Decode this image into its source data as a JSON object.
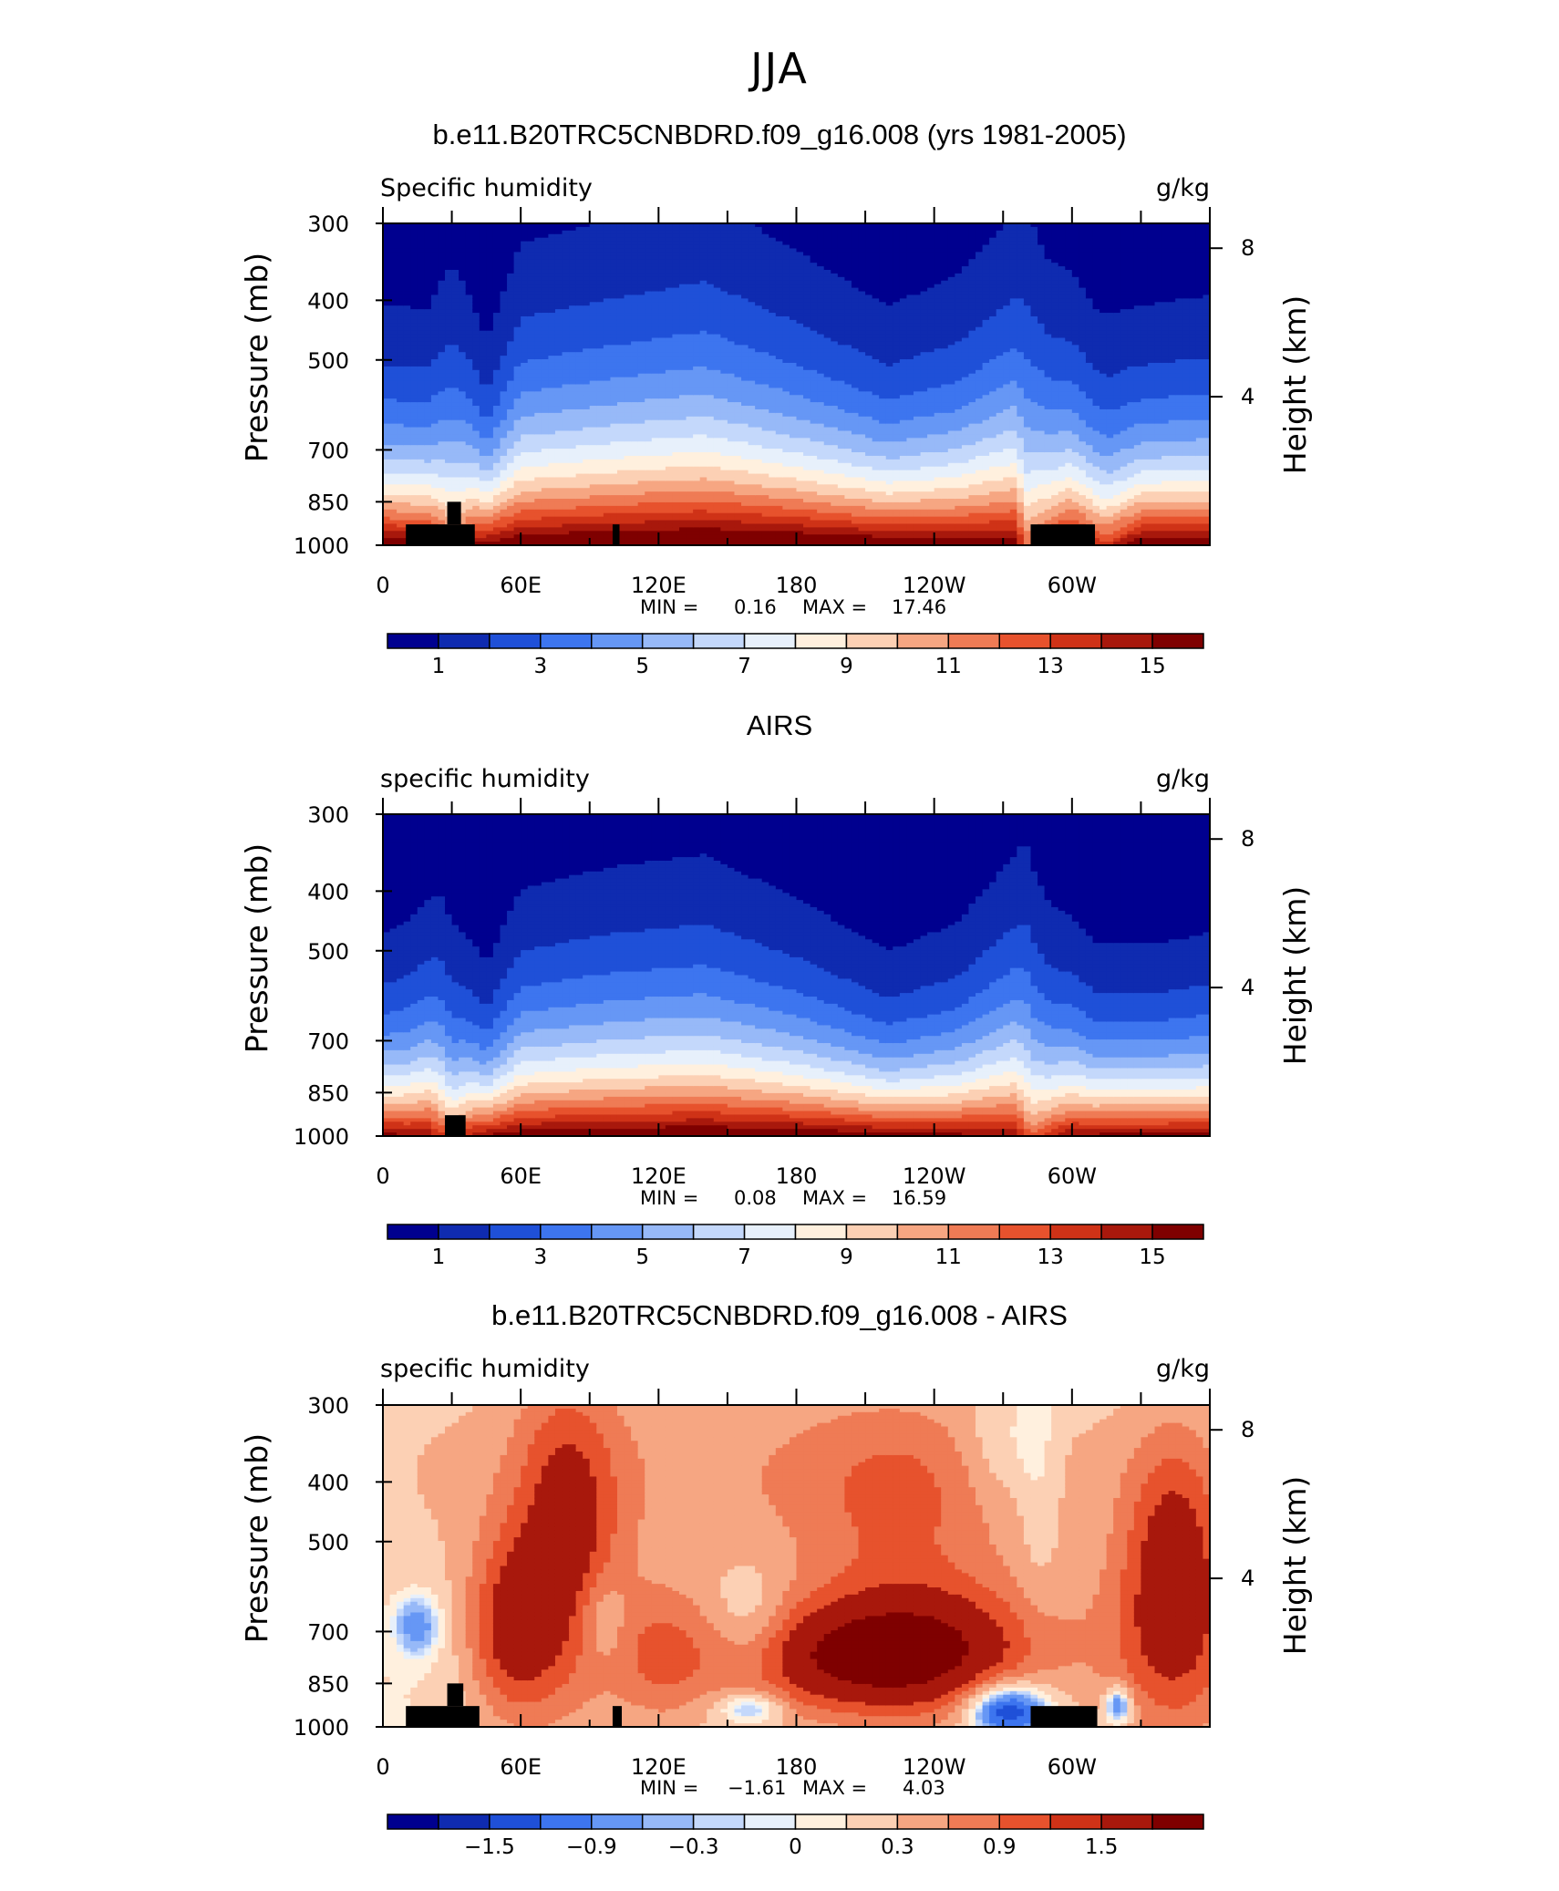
{
  "page_title": "JJA",
  "panels": [
    {
      "title": "b.e11.B20TRC5CNBDRD.f09_g16.008 (yrs 1981-2005)",
      "left_label": "Specific humidity",
      "right_label": "g/kg",
      "min_label": "MIN =",
      "min_value": "0.16",
      "max_label": "MAX =",
      "max_value": "17.46",
      "colorbar_labels": [
        "1",
        "3",
        "5",
        "7",
        "9",
        "11",
        "13",
        "15"
      ]
    },
    {
      "title": "AIRS",
      "left_label": "specific humidity",
      "right_label": "g/kg",
      "min_label": "MIN =",
      "min_value": "0.08",
      "max_label": "MAX =",
      "max_value": "16.59",
      "colorbar_labels": [
        "1",
        "3",
        "5",
        "7",
        "9",
        "11",
        "13",
        "15"
      ]
    },
    {
      "title": "b.e11.B20TRC5CNBDRD.f09_g16.008 - AIRS",
      "left_label": "specific humidity",
      "right_label": "g/kg",
      "min_label": "MIN =",
      "min_value": "−1.61",
      "max_label": "MAX =",
      "max_value": "4.03",
      "colorbar_labels": [
        "−1.5",
        "−0.9",
        "−0.3",
        "0",
        "0.3",
        "0.9",
        "1.5"
      ]
    }
  ],
  "axes": {
    "ylabel": "Pressure (mb)",
    "ylabel_right": "Height (km)",
    "y_ticks": [
      "300",
      "400",
      "500",
      "700",
      "850",
      "1000"
    ],
    "y_right_ticks": [
      "8",
      "4"
    ],
    "x_ticks": [
      "0",
      "60E",
      "120E",
      "180",
      "120W",
      "60W"
    ]
  },
  "colors": {
    "full_scale": [
      "#00008f",
      "#0f2bb0",
      "#1f50d8",
      "#3d75ef",
      "#6697f5",
      "#97b9f8",
      "#c4d8fb",
      "#e7f0fb",
      "#fff0de",
      "#fcd0b4",
      "#f6a682",
      "#ef7b55",
      "#e7522d",
      "#cf3217",
      "#a8180c",
      "#7f0000"
    ],
    "diff_scale": [
      "#00008f",
      "#0f2bb0",
      "#1f50d8",
      "#3d75ef",
      "#6697f5",
      "#97b9f8",
      "#c4d8fb",
      "#e7f0fb",
      "#fff0de",
      "#fcd0b4",
      "#f6a682",
      "#ef7b55",
      "#e7522d",
      "#cf3217",
      "#a8180c",
      "#7f0000"
    ],
    "land_mask": "#000000"
  },
  "chart_data": [
    {
      "type": "heatmap",
      "title": "b.e11.B20TRC5CNBDRD.f09_g16.008 (yrs 1981-2005)",
      "subtitle_left": "Specific humidity",
      "units": "g/kg",
      "xlabel": "",
      "ylabel": "Pressure (mb)",
      "ylabel_right": "Height (km)",
      "x_range": [
        0,
        360
      ],
      "y_range": [
        1000,
        300
      ],
      "y_scale": "log",
      "levels": [
        1,
        2,
        3,
        4,
        5,
        6,
        7,
        8,
        9,
        10,
        11,
        12,
        13,
        14,
        15
      ],
      "min": 0.16,
      "max": 17.46,
      "surface_q": [
        [
          0,
          16.5
        ],
        [
          20,
          16
        ],
        [
          30,
          12.5
        ],
        [
          40,
          15.5
        ],
        [
          60,
          16.5
        ],
        [
          100,
          17
        ],
        [
          140,
          17.2
        ],
        [
          180,
          17
        ],
        [
          220,
          16.5
        ],
        [
          275,
          16
        ],
        [
          280,
          12
        ],
        [
          300,
          16
        ],
        [
          315,
          13.5
        ],
        [
          330,
          16.5
        ],
        [
          360,
          16.5
        ]
      ],
      "scale_height_km": [
        [
          0,
          2.3
        ],
        [
          20,
          2.3
        ],
        [
          30,
          3.0
        ],
        [
          45,
          2.0
        ],
        [
          60,
          2.9
        ],
        [
          100,
          3.1
        ],
        [
          140,
          3.3
        ],
        [
          180,
          2.8
        ],
        [
          220,
          2.3
        ],
        [
          250,
          2.6
        ],
        [
          275,
          3.2
        ],
        [
          280,
          3.6
        ],
        [
          290,
          2.9
        ],
        [
          310,
          2.4
        ],
        [
          330,
          2.3
        ],
        [
          360,
          2.4
        ]
      ],
      "land_blocks": [
        [
          10,
          40,
          1000,
          925
        ],
        [
          28,
          34,
          925,
          850
        ],
        [
          100,
          103,
          1000,
          925
        ],
        [
          282,
          310,
          1000,
          925
        ]
      ]
    },
    {
      "type": "heatmap",
      "title": "AIRS",
      "subtitle_left": "specific humidity",
      "units": "g/kg",
      "xlabel": "",
      "ylabel": "Pressure (mb)",
      "ylabel_right": "Height (km)",
      "x_range": [
        0,
        360
      ],
      "y_range": [
        1000,
        300
      ],
      "y_scale": "log",
      "levels": [
        1,
        2,
        3,
        4,
        5,
        6,
        7,
        8,
        9,
        10,
        11,
        12,
        13,
        14,
        15
      ],
      "min": 0.08,
      "max": 16.59,
      "surface_q": [
        [
          0,
          15.5
        ],
        [
          20,
          15
        ],
        [
          30,
          12
        ],
        [
          40,
          15
        ],
        [
          60,
          16
        ],
        [
          100,
          16.3
        ],
        [
          140,
          16.5
        ],
        [
          180,
          16.3
        ],
        [
          220,
          15.8
        ],
        [
          275,
          15
        ],
        [
          282,
          12
        ],
        [
          300,
          15.3
        ],
        [
          330,
          15.5
        ],
        [
          360,
          15.5
        ]
      ],
      "scale_height_km": [
        [
          0,
          2.0
        ],
        [
          10,
          2.1
        ],
        [
          25,
          2.5
        ],
        [
          45,
          1.7
        ],
        [
          60,
          2.4
        ],
        [
          100,
          2.6
        ],
        [
          140,
          2.7
        ],
        [
          180,
          2.3
        ],
        [
          220,
          1.8
        ],
        [
          250,
          2.1
        ],
        [
          275,
          2.8
        ],
        [
          280,
          3.1
        ],
        [
          290,
          2.4
        ],
        [
          310,
          1.9
        ],
        [
          340,
          1.9
        ],
        [
          360,
          2.0
        ]
      ],
      "land_blocks": [
        [
          27,
          36,
          1000,
          925
        ]
      ]
    },
    {
      "type": "heatmap",
      "title": "b.e11.B20TRC5CNBDRD.f09_g16.008 - AIRS",
      "subtitle_left": "specific humidity",
      "units": "g/kg",
      "xlabel": "",
      "ylabel": "Pressure (mb)",
      "ylabel_right": "Height (km)",
      "x_range": [
        0,
        360
      ],
      "y_range": [
        1000,
        300
      ],
      "y_scale": "log",
      "levels": [
        -1.5,
        -1.2,
        -0.9,
        -0.6,
        -0.3,
        -0.1,
        0,
        0.1,
        0.3,
        0.6,
        0.9,
        1.2,
        1.5
      ],
      "min": -1.61,
      "max": 4.03,
      "land_blocks": [
        [
          10,
          42,
          1000,
          925
        ],
        [
          28,
          35,
          925,
          850
        ],
        [
          100,
          104,
          1000,
          925
        ],
        [
          282,
          311,
          1000,
          925
        ]
      ]
    }
  ]
}
